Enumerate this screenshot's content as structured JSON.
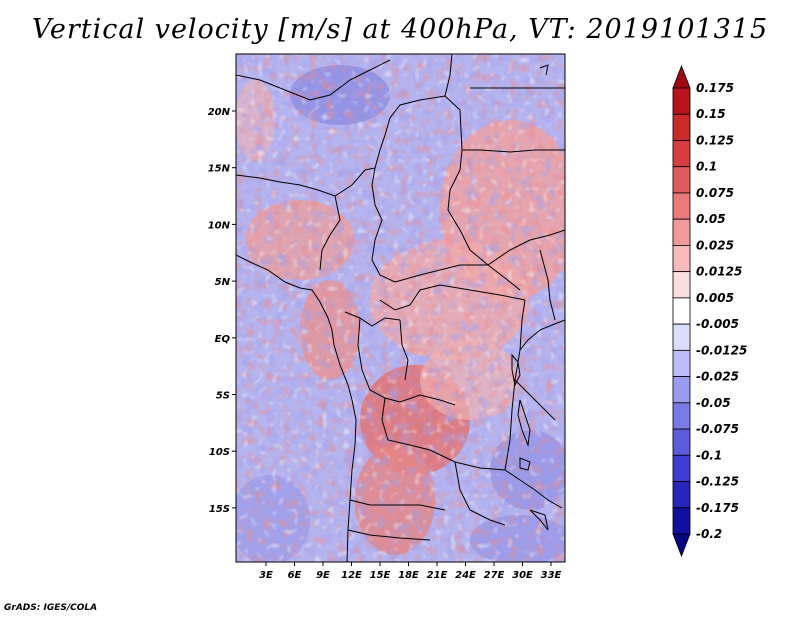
{
  "title": "Vertical velocity [m/s] at 400hPa, VT: 2019101315",
  "credit": "GrADS: IGES/COLA",
  "map": {
    "lon_range": [
      0,
      35
    ],
    "lat_range": [
      -20,
      25
    ],
    "lon_ticks": [
      "3E",
      "6E",
      "9E",
      "12E",
      "15E",
      "18E",
      "21E",
      "24E",
      "27E",
      "30E",
      "33E"
    ],
    "lon_values": [
      3,
      6,
      9,
      12,
      15,
      18,
      21,
      24,
      27,
      30,
      33
    ],
    "lat_ticks": [
      "20N",
      "15N",
      "10N",
      "5N",
      "EQ",
      "5S",
      "10S",
      "15S"
    ],
    "lat_values": [
      20,
      15,
      10,
      5,
      0,
      -5,
      -10,
      -15
    ]
  },
  "colorbar": {
    "labels": [
      "0.175",
      "0.15",
      "0.125",
      "0.1",
      "0.075",
      "0.05",
      "0.025",
      "0.0125",
      "0.005",
      "-0.005",
      "-0.0125",
      "-0.025",
      "-0.05",
      "-0.075",
      "-0.1",
      "-0.125",
      "-0.175",
      "-0.2"
    ],
    "colors": [
      "#9e0a12",
      "#b8141c",
      "#c92a2a",
      "#d63d3d",
      "#e05c5c",
      "#e87a7a",
      "#f09a9a",
      "#f6bcbc",
      "#fbdede",
      "#ffffff",
      "#dcdcfc",
      "#bcbcf6",
      "#9a9aee",
      "#7a7ae6",
      "#5c5cdc",
      "#3d3dd0",
      "#2626bb",
      "#1010a0",
      "#07077f"
    ]
  }
}
